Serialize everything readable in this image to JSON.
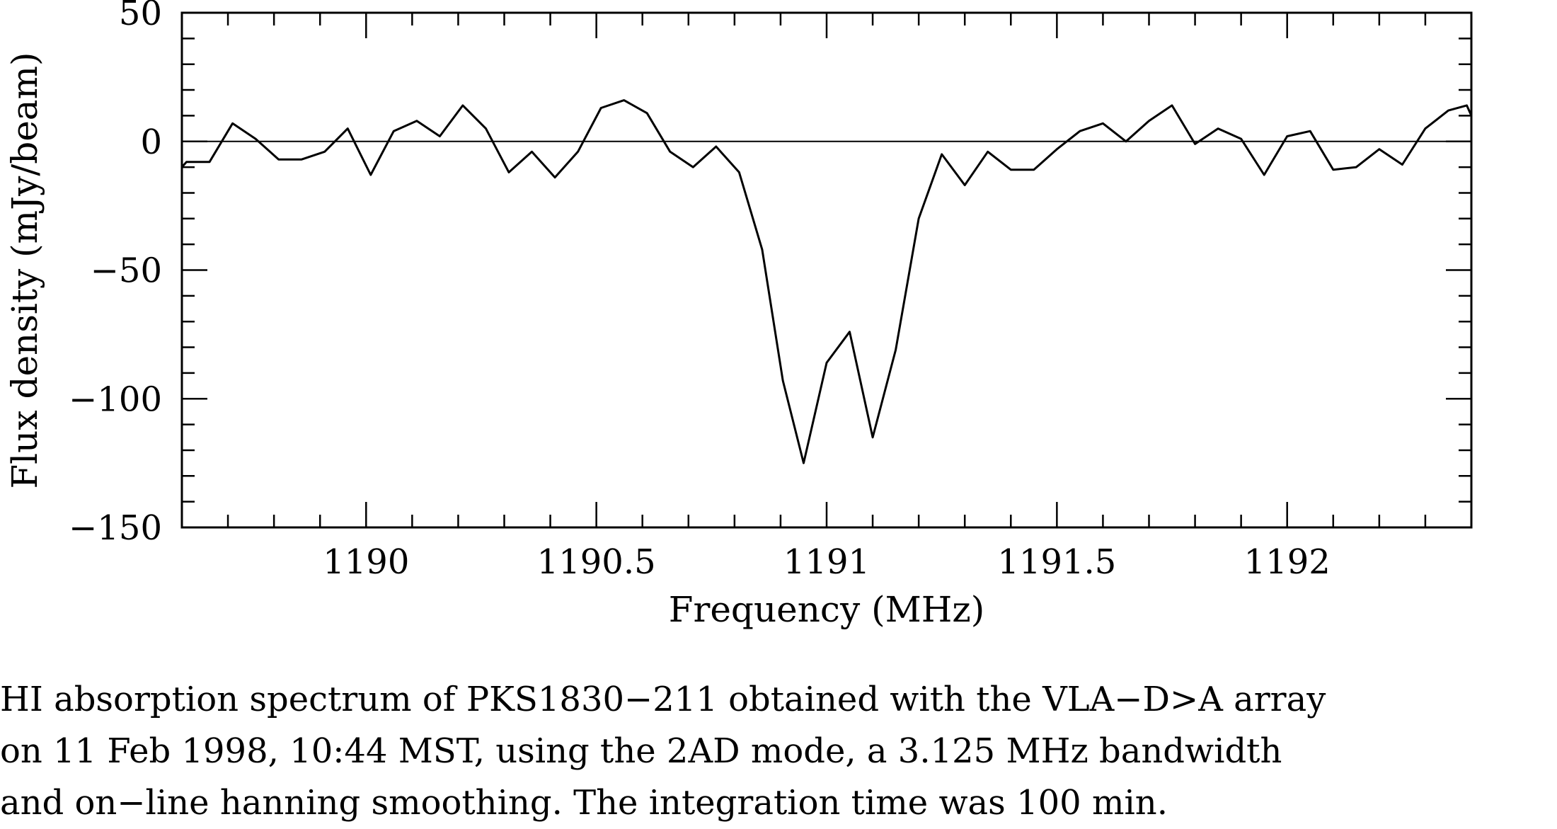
{
  "chart_data": {
    "type": "line",
    "xlabel": "Frequency (MHz)",
    "ylabel": "Flux density (mJy/beam)",
    "xlim": [
      1189.6,
      1192.4
    ],
    "ylim": [
      -150,
      50
    ],
    "xticks": [
      1190,
      1190.5,
      1191,
      1191.5,
      1192
    ],
    "xtick_labels": [
      "1190",
      "1190.5",
      "1191",
      "1191.5",
      "1192"
    ],
    "yticks": [
      -150,
      -100,
      -50,
      0,
      50
    ],
    "ytick_labels": [
      "−150",
      "−100",
      "−50",
      "0",
      "50"
    ],
    "x_minor_step": 0.1,
    "y_minor_step": 10,
    "zero_line": true,
    "grid": false,
    "series": [
      {
        "x": [
          1189.6,
          1189.61,
          1189.66,
          1189.71,
          1189.76,
          1189.81,
          1189.86,
          1189.91,
          1189.96,
          1190.01,
          1190.06,
          1190.11,
          1190.16,
          1190.21,
          1190.26,
          1190.31,
          1190.36,
          1190.41,
          1190.46,
          1190.51,
          1190.56,
          1190.61,
          1190.66,
          1190.71,
          1190.76,
          1190.81,
          1190.86,
          1190.905,
          1190.95,
          1191.0,
          1191.05,
          1191.1,
          1191.15,
          1191.2,
          1191.25,
          1191.3,
          1191.35,
          1191.4,
          1191.45,
          1191.5,
          1191.55,
          1191.6,
          1191.65,
          1191.7,
          1191.75,
          1191.8,
          1191.85,
          1191.9,
          1191.95,
          1192.0,
          1192.05,
          1192.1,
          1192.15,
          1192.2,
          1192.25,
          1192.3,
          1192.35,
          1192.39,
          1192.4
        ],
        "y": [
          -10,
          -8,
          -8,
          7,
          1,
          -7,
          -7,
          -4,
          5,
          -13,
          4,
          8,
          2,
          14,
          5,
          -12,
          -4,
          -14,
          -4,
          13,
          16,
          11,
          -4,
          -10,
          -2,
          -12,
          -42,
          -93,
          -125,
          -86,
          -74,
          -115,
          -81,
          -30,
          -5,
          -17,
          -4,
          -11,
          -11,
          -3,
          4,
          7,
          0,
          8,
          14,
          -1,
          5,
          1,
          -13,
          2,
          4,
          -11,
          -10,
          -3,
          -9,
          5,
          12,
          14,
          10
        ]
      }
    ]
  },
  "caption": {
    "line1": "HI absorption spectrum of PKS1830−211 obtained with the VLA−D>A array",
    "line2": "on 11 Feb 1998, 10:44 MST, using the 2AD mode, a 3.125 MHz bandwidth",
    "line3": "and on−line hanning smoothing. The integration time was 100 min."
  }
}
